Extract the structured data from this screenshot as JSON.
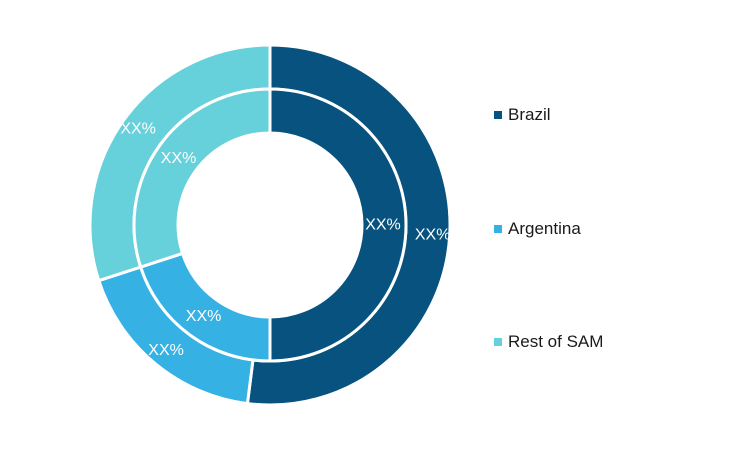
{
  "chart_data": {
    "type": "donut",
    "rings": [
      {
        "name": "",
        "categories": [
          "Brazil",
          "Argentina",
          "Rest of SAM"
        ],
        "values": [
          52,
          18,
          30
        ],
        "labels": [
          "XX%",
          "XX%",
          "XX%"
        ]
      },
      {
        "name": "",
        "categories": [
          "Brazil",
          "Argentina",
          "Rest of SAM"
        ],
        "values": [
          50,
          20,
          30
        ],
        "labels": [
          "XX%",
          "XX%",
          "XX%"
        ]
      }
    ],
    "colors": [
      "#07527e",
      "#36b1e4",
      "#66d1da"
    ],
    "legend": {
      "position": "right",
      "items": [
        {
          "label": "Brazil",
          "color": "#07527e"
        },
        {
          "label": "Argentina",
          "color": "#36b1e4"
        },
        {
          "label": "Rest of SAM",
          "color": "#66d1da"
        }
      ]
    },
    "title": ""
  }
}
